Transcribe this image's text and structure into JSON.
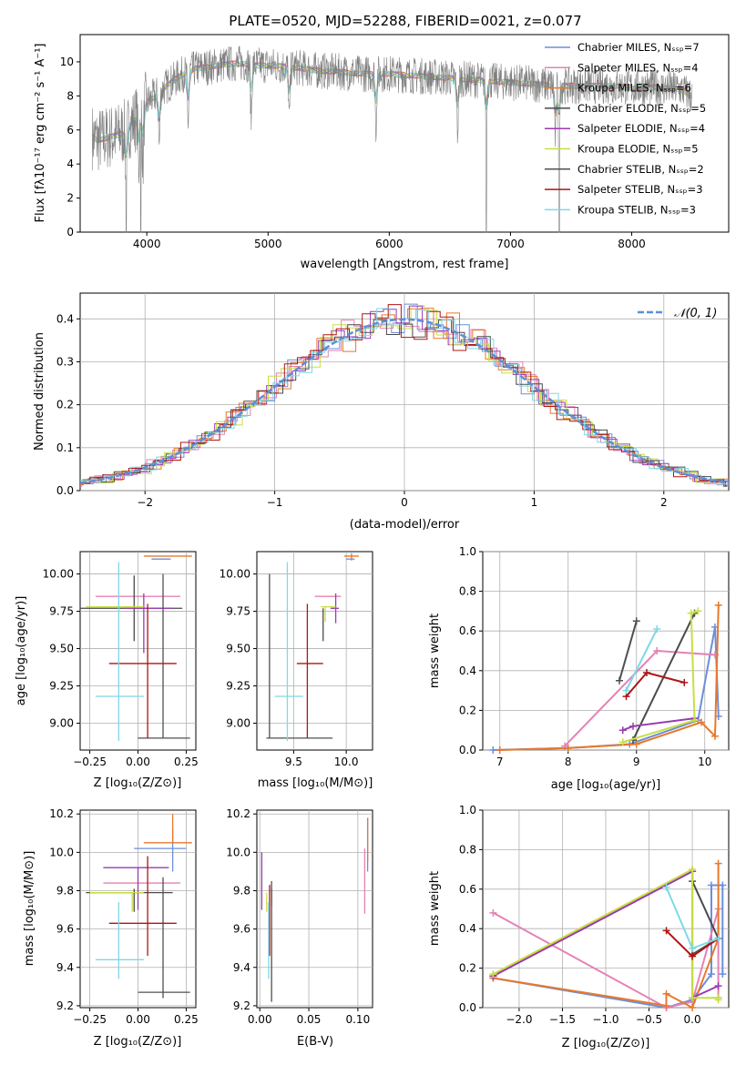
{
  "figure": {
    "title": "PLATE=0520, MJD=52288, FIBERID=0021, z=0.077"
  },
  "colors": {
    "chabrier_miles": "#6c8edc",
    "salpeter_miles": "#e482b6",
    "kroupa_miles": "#e8782a",
    "chabrier_elodie": "#4a4a4a",
    "salpeter_elodie": "#9a3ab3",
    "kroupa_elodie": "#c8de44",
    "chabrier_stelib": "#505050",
    "salpeter_stelib": "#b01414",
    "kroupa_stelib": "#7fd8e6",
    "data": "#7f7f7f",
    "normal": "#5b8fd6"
  },
  "chart_data": [
    {
      "id": "spectrum",
      "type": "line",
      "xlabel": "wavelength [Angstrom, rest frame]",
      "ylabel": "Flux [fλ10⁻¹⁷ erg cm⁻² s⁻¹ A⁻¹]",
      "xlim": [
        3450,
        8800
      ],
      "ylim": [
        0,
        11.6
      ],
      "xticks": [
        4000,
        5000,
        6000,
        7000,
        8000
      ],
      "yticks": [
        0,
        2,
        4,
        6,
        8,
        10
      ],
      "legend_position": "right",
      "legend": [
        {
          "label": "Chabrier MILES, Nₛₛₚ=7",
          "color": "#6c8edc"
        },
        {
          "label": "Salpeter MILES, Nₛₛₚ=4",
          "color": "#e482b6"
        },
        {
          "label": "Kroupa MILES, Nₛₛₚ=6",
          "color": "#e8782a"
        },
        {
          "label": "Chabrier ELODIE, Nₛₛₚ=5",
          "color": "#4a4a4a"
        },
        {
          "label": "Salpeter ELODIE, Nₛₛₚ=4",
          "color": "#9a3ab3"
        },
        {
          "label": "Kroupa ELODIE, Nₛₛₚ=5",
          "color": "#c8de44"
        },
        {
          "label": "Chabrier STELIB, Nₛₛₚ=2",
          "color": "#505050"
        },
        {
          "label": "Salpeter STELIB, Nₛₛₚ=3",
          "color": "#b01414"
        },
        {
          "label": "Kroupa STELIB, Nₛₛₚ=3",
          "color": "#7fd8e6"
        }
      ],
      "continuum": {
        "x": [
          3550,
          3600,
          3700,
          3800,
          3900,
          4000,
          4100,
          4200,
          4300,
          4400,
          4500,
          4600,
          4700,
          4800,
          4900,
          5000,
          5200,
          5400,
          5600,
          5800,
          6000,
          6200,
          6400,
          6600,
          6800,
          7000,
          7200,
          7400,
          7600,
          7800,
          8000,
          8200,
          8400,
          8500
        ],
        "y": [
          5.6,
          5.4,
          5.6,
          5.8,
          6.6,
          7.6,
          8.2,
          8.8,
          9.3,
          9.6,
          9.7,
          9.8,
          9.9,
          9.9,
          9.8,
          9.8,
          9.7,
          9.5,
          9.4,
          9.3,
          9.3,
          9.2,
          9.1,
          9.0,
          8.9,
          8.8,
          8.7,
          8.6,
          8.6,
          8.6,
          8.5,
          8.5,
          8.4,
          8.0
        ]
      },
      "dips": [
        3830,
        3933,
        3968,
        4102,
        4340,
        4861,
        5175,
        5890,
        6563,
        6800,
        7370,
        7400
      ]
    },
    {
      "id": "residuals",
      "type": "line",
      "xlabel": "(data-model)/error",
      "ylabel": "Normed distribution",
      "xlim": [
        -2.5,
        2.5
      ],
      "ylim": [
        0,
        0.46
      ],
      "xticks": [
        -2,
        -1,
        0,
        1,
        2
      ],
      "yticks": [
        0.0,
        0.1,
        0.2,
        0.3,
        0.4
      ],
      "legend_position": "top-right",
      "legend_label": "𝒩(0, 1)",
      "grid": true
    },
    {
      "id": "age_vs_z",
      "type": "scatter",
      "xlabel": "Z [log₁₀(Z/Z⊙)]",
      "ylabel": "age  [log₁₀(age/yr)]",
      "xlim": [
        -0.3,
        0.3
      ],
      "ylim": [
        8.82,
        10.15
      ],
      "xticks": [
        -0.25,
        0.0,
        0.25
      ],
      "yticks": [
        9.0,
        9.25,
        9.5,
        9.75,
        10.0
      ],
      "points": [
        {
          "x": 0.12,
          "y": 10.1,
          "xerr": [
            0.05,
            0.05
          ],
          "yerr": [
            0.0,
            0.0
          ],
          "color": "#6c8edc"
        },
        {
          "x": -0.02,
          "y": 9.85,
          "xerr": [
            0.2,
            0.24
          ],
          "yerr": [
            0.0,
            0.0
          ],
          "color": "#e482b6"
        },
        {
          "x": 0.18,
          "y": 10.12,
          "xerr": [
            0.15,
            0.1
          ],
          "yerr": [
            0.0,
            0.0
          ],
          "color": "#e8782a"
        },
        {
          "x": -0.02,
          "y": 9.77,
          "xerr": [
            0.3,
            0.25
          ],
          "yerr": [
            0.22,
            0.22
          ],
          "color": "#4a4a4a"
        },
        {
          "x": 0.03,
          "y": 9.77,
          "xerr": [
            0.1,
            0.15
          ],
          "yerr": [
            0.3,
            0.1
          ],
          "color": "#9a3ab3"
        },
        {
          "x": -0.03,
          "y": 9.78,
          "xerr": [
            0.24,
            0.06
          ],
          "yerr": [
            0.0,
            0.0
          ],
          "color": "#c8de44"
        },
        {
          "x": 0.13,
          "y": 8.9,
          "xerr": [
            0.13,
            0.14
          ],
          "yerr": [
            0.0,
            1.1
          ],
          "color": "#505050"
        },
        {
          "x": 0.05,
          "y": 9.4,
          "xerr": [
            0.2,
            0.15
          ],
          "yerr": [
            0.5,
            0.4
          ],
          "color": "#b01414"
        },
        {
          "x": -0.1,
          "y": 9.18,
          "xerr": [
            0.12,
            0.13
          ],
          "yerr": [
            0.3,
            0.9
          ],
          "color": "#7fd8e6"
        }
      ]
    },
    {
      "id": "age_vs_mass",
      "type": "scatter",
      "xlabel": "mass [log₁₀(M/M⊙)]",
      "ylabel": "",
      "xlim": [
        9.15,
        10.25
      ],
      "ylim": [
        8.82,
        10.15
      ],
      "xticks": [
        9.5,
        10.0
      ],
      "yticks": [
        9.0,
        9.25,
        9.5,
        9.75,
        10.0
      ],
      "points": [
        {
          "x": 10.0,
          "y": 10.1,
          "xerr": [
            0.0,
            0.08
          ],
          "yerr": [
            0.0,
            0.0
          ],
          "color": "#6c8edc"
        },
        {
          "x": 9.85,
          "y": 9.85,
          "xerr": [
            0.15,
            0.1
          ],
          "yerr": [
            0.0,
            0.0
          ],
          "color": "#e482b6"
        },
        {
          "x": 10.05,
          "y": 10.12,
          "xerr": [
            0.07,
            0.07
          ],
          "yerr": [
            0.03,
            0.02
          ],
          "color": "#e8782a"
        },
        {
          "x": 9.78,
          "y": 9.77,
          "xerr": [
            0.0,
            0.0
          ],
          "yerr": [
            0.22,
            0.0
          ],
          "color": "#4a4a4a"
        },
        {
          "x": 9.9,
          "y": 9.77,
          "xerr": [
            0.05,
            0.03
          ],
          "yerr": [
            0.1,
            0.1
          ],
          "color": "#9a3ab3"
        },
        {
          "x": 9.8,
          "y": 9.78,
          "xerr": [
            0.04,
            0.1
          ],
          "yerr": [
            0.1,
            0.0
          ],
          "color": "#c8de44"
        },
        {
          "x": 9.27,
          "y": 8.9,
          "xerr": [
            0.03,
            0.6
          ],
          "yerr": [
            0.0,
            1.1
          ],
          "color": "#505050"
        },
        {
          "x": 9.63,
          "y": 9.4,
          "xerr": [
            0.1,
            0.15
          ],
          "yerr": [
            0.5,
            0.4
          ],
          "color": "#b01414"
        },
        {
          "x": 9.44,
          "y": 9.18,
          "xerr": [
            0.12,
            0.15
          ],
          "yerr": [
            0.3,
            0.9
          ],
          "color": "#7fd8e6"
        }
      ]
    },
    {
      "id": "weight_vs_age",
      "type": "line",
      "xlabel": "age  [log₁₀(age/yr)]",
      "ylabel": "mass weight",
      "xlim": [
        6.75,
        10.35
      ],
      "ylim": [
        0,
        1.0
      ],
      "xticks": [
        7,
        8,
        9,
        10
      ],
      "yticks": [
        0.0,
        0.2,
        0.4,
        0.6,
        0.8,
        1.0
      ],
      "grid": true,
      "series": [
        {
          "color": "#6c8edc",
          "x": [
            6.9,
            8.0,
            8.9,
            9.9,
            10.15,
            10.2
          ],
          "y": [
            0.0,
            0.01,
            0.03,
            0.15,
            0.62,
            0.17
          ]
        },
        {
          "color": "#e482b6",
          "x": [
            7.95,
            9.3,
            10.15
          ],
          "y": [
            0.02,
            0.5,
            0.48
          ]
        },
        {
          "color": "#e8782a",
          "x": [
            7.0,
            8.0,
            9.0,
            9.95,
            10.15,
            10.2
          ],
          "y": [
            0.0,
            0.01,
            0.03,
            0.14,
            0.07,
            0.73
          ]
        },
        {
          "color": "#4a4a4a",
          "x": [
            8.95,
            9.85
          ],
          "y": [
            0.05,
            0.69
          ]
        },
        {
          "color": "#9a3ab3",
          "x": [
            8.8,
            8.95,
            9.85
          ],
          "y": [
            0.1,
            0.12,
            0.16
          ]
        },
        {
          "color": "#c8de44",
          "x": [
            8.8,
            9.85,
            9.8,
            9.9
          ],
          "y": [
            0.04,
            0.15,
            0.69,
            0.7
          ]
        },
        {
          "color": "#505050",
          "x": [
            8.75,
            9.0
          ],
          "y": [
            0.35,
            0.65
          ]
        },
        {
          "color": "#b01414",
          "x": [
            8.85,
            9.15,
            9.7
          ],
          "y": [
            0.27,
            0.39,
            0.34
          ]
        },
        {
          "color": "#7fd8e6",
          "x": [
            8.85,
            9.3
          ],
          "y": [
            0.3,
            0.61
          ]
        }
      ]
    },
    {
      "id": "mass_vs_z",
      "type": "scatter",
      "xlabel": "Z [log₁₀(Z/Z⊙)]",
      "ylabel": "mass [log₁₀(M/M⊙)]",
      "xlim": [
        -0.3,
        0.3
      ],
      "ylim": [
        9.19,
        10.22
      ],
      "xticks": [
        -0.25,
        0.0,
        0.25
      ],
      "yticks": [
        9.2,
        9.4,
        9.6,
        9.8,
        10.0,
        10.2
      ],
      "points": [
        {
          "x": 0.18,
          "y": 10.02,
          "xerr": [
            0.2,
            0.07
          ],
          "yerr": [
            0.12,
            0.1
          ],
          "color": "#6c8edc"
        },
        {
          "x": 0.02,
          "y": 9.84,
          "xerr": [
            0.2,
            0.2
          ],
          "yerr": [
            0.0,
            0.0
          ],
          "color": "#e482b6"
        },
        {
          "x": 0.18,
          "y": 10.05,
          "xerr": [
            0.15,
            0.1
          ],
          "yerr": [
            0.0,
            0.15
          ],
          "color": "#e8782a"
        },
        {
          "x": -0.02,
          "y": 9.79,
          "xerr": [
            0.25,
            0.2
          ],
          "yerr": [
            0.1,
            0.02
          ],
          "color": "#4a4a4a"
        },
        {
          "x": 0.0,
          "y": 9.92,
          "xerr": [
            0.18,
            0.16
          ],
          "yerr": [
            0.22,
            0.0
          ],
          "color": "#9a3ab3"
        },
        {
          "x": -0.03,
          "y": 9.79,
          "xerr": [
            0.22,
            0.06
          ],
          "yerr": [
            0.1,
            0.0
          ],
          "color": "#c8de44"
        },
        {
          "x": 0.13,
          "y": 9.27,
          "xerr": [
            0.13,
            0.14
          ],
          "yerr": [
            0.03,
            0.6
          ],
          "color": "#505050"
        },
        {
          "x": 0.05,
          "y": 9.63,
          "xerr": [
            0.2,
            0.15
          ],
          "yerr": [
            0.17,
            0.35
          ],
          "color": "#b01414"
        },
        {
          "x": -0.1,
          "y": 9.44,
          "xerr": [
            0.12,
            0.13
          ],
          "yerr": [
            0.1,
            0.3
          ],
          "color": "#7fd8e6"
        }
      ]
    },
    {
      "id": "mass_vs_ebv",
      "type": "scatter",
      "xlabel": "E(B-V)",
      "ylabel": "",
      "xlim": [
        -0.003,
        0.115
      ],
      "ylim": [
        9.19,
        10.22
      ],
      "xticks": [
        0.0,
        0.05,
        0.1
      ],
      "yticks": [
        9.2,
        9.4,
        9.6,
        9.8,
        10.0,
        10.2
      ],
      "points": [
        {
          "x": 0.11,
          "y": 10.02,
          "yerr": [
            0.12,
            0.16
          ],
          "color": "#6c8edc"
        },
        {
          "x": 0.107,
          "y": 9.84,
          "yerr": [
            0.16,
            0.18
          ],
          "color": "#e482b6"
        },
        {
          "x": 0.11,
          "y": 10.05,
          "yerr": [
            0.1,
            0.13
          ],
          "color": "#e8782a"
        },
        {
          "x": 0.012,
          "y": 9.79,
          "yerr": [
            0.07,
            0.02
          ],
          "color": "#4a4a4a"
        },
        {
          "x": 0.002,
          "y": 9.92,
          "yerr": [
            0.22,
            0.08
          ],
          "color": "#9a3ab3"
        },
        {
          "x": 0.007,
          "y": 9.79,
          "yerr": [
            0.1,
            0.0
          ],
          "color": "#c8de44"
        },
        {
          "x": 0.012,
          "y": 9.27,
          "yerr": [
            0.05,
            0.58
          ],
          "color": "#505050"
        },
        {
          "x": 0.01,
          "y": 9.63,
          "yerr": [
            0.17,
            0.2
          ],
          "color": "#b01414"
        },
        {
          "x": 0.009,
          "y": 9.44,
          "yerr": [
            0.1,
            0.3
          ],
          "color": "#7fd8e6"
        }
      ]
    },
    {
      "id": "weight_vs_z",
      "type": "line",
      "xlabel": "Z [log₁₀(Z/Z⊙)]",
      "ylabel": "mass weight",
      "xlim": [
        -2.42,
        0.42
      ],
      "ylim": [
        0,
        1.0
      ],
      "xticks": [
        -2.0,
        -1.5,
        -1.0,
        -0.5,
        0.0
      ],
      "yticks": [
        0.0,
        0.2,
        0.4,
        0.6,
        0.8,
        1.0
      ],
      "grid": true,
      "series": [
        {
          "color": "#6c8edc",
          "x": [
            -2.3,
            -0.3,
            0.0,
            0.22,
            0.22,
            0.35,
            0.35
          ],
          "y": [
            0.15,
            0.0,
            0.04,
            0.17,
            0.62,
            0.62,
            0.17
          ]
        },
        {
          "color": "#e482b6",
          "x": [
            -2.3,
            -0.3,
            0.0,
            0.3,
            0.3
          ],
          "y": [
            0.48,
            0.0,
            0.03,
            0.5,
            0.05
          ]
        },
        {
          "color": "#e8782a",
          "x": [
            -2.3,
            -0.3,
            -0.3,
            0.0,
            0.3,
            0.3
          ],
          "y": [
            0.15,
            0.01,
            0.07,
            0.0,
            0.35,
            0.73
          ]
        },
        {
          "color": "#4a4a4a",
          "x": [
            -2.3,
            0.0,
            0.0,
            0.3,
            0.3
          ],
          "y": [
            0.16,
            0.69,
            0.64,
            0.35,
            0.35
          ]
        },
        {
          "color": "#9a3ab3",
          "x": [
            -2.3,
            0.0,
            0.0,
            0.3
          ],
          "y": [
            0.16,
            0.69,
            0.05,
            0.11
          ]
        },
        {
          "color": "#c8de44",
          "x": [
            -2.3,
            0.0,
            0.0,
            0.3,
            0.3
          ],
          "y": [
            0.17,
            0.7,
            0.05,
            0.05,
            0.04
          ]
        },
        {
          "color": "#505050",
          "x": [
            0.0,
            0.3
          ],
          "y": [
            0.27,
            0.35
          ]
        },
        {
          "color": "#b01414",
          "x": [
            -0.3,
            0.0,
            0.3
          ],
          "y": [
            0.39,
            0.26,
            0.35
          ]
        },
        {
          "color": "#7fd8e6",
          "x": [
            -0.3,
            0.0,
            0.3
          ],
          "y": [
            0.61,
            0.3,
            0.35
          ]
        }
      ]
    }
  ]
}
